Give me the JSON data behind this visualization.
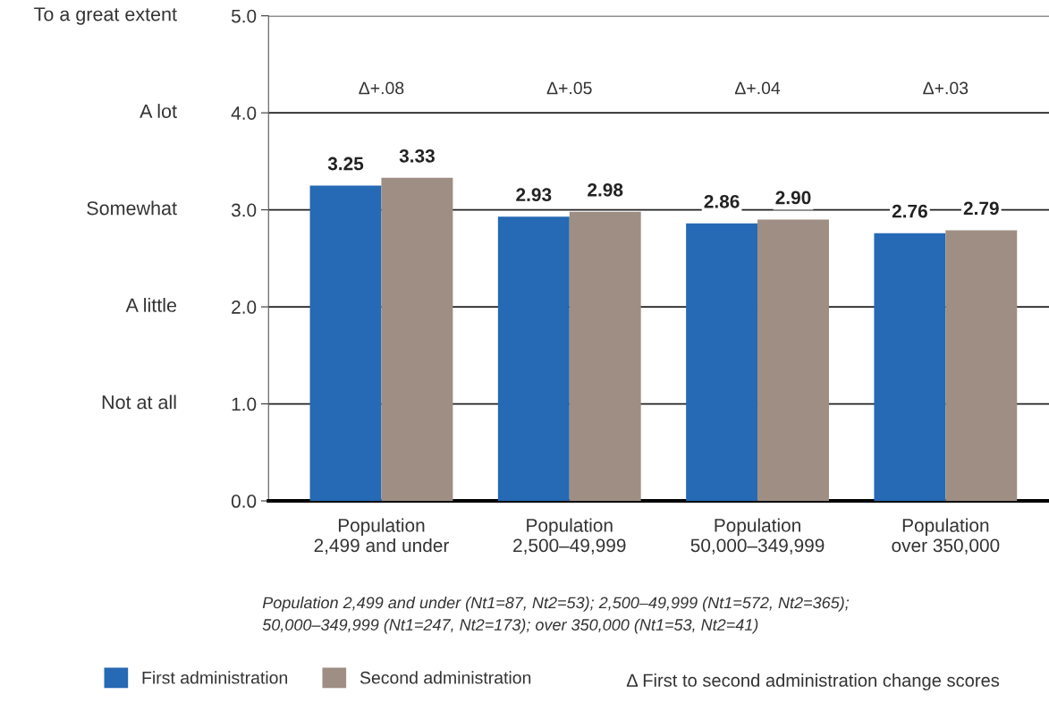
{
  "chart_data": {
    "type": "bar",
    "categories": [
      "Population\n2,499 and under",
      "Population\n2,500–49,999",
      "Population\n50,000–349,999",
      "Population\nover 350,000"
    ],
    "series": [
      {
        "name": "First administration",
        "color": "#2669b4",
        "values": [
          3.25,
          2.93,
          2.86,
          2.76
        ],
        "value_labels": [
          "3.25",
          "2.93",
          "2.86",
          "2.76"
        ]
      },
      {
        "name": "Second administration",
        "color": "#9e8e83",
        "values": [
          3.33,
          2.98,
          2.9,
          2.79
        ],
        "value_labels": [
          "3.33",
          "2.98",
          "2.90",
          "2.79"
        ]
      }
    ],
    "ylim": [
      0,
      5
    ],
    "yticks": [
      {
        "value": 0,
        "label": "0.0"
      },
      {
        "value": 1,
        "label": "1.0"
      },
      {
        "value": 2,
        "label": "2.0"
      },
      {
        "value": 3,
        "label": "3.0"
      },
      {
        "value": 4,
        "label": "4.0"
      },
      {
        "value": 5,
        "label": "5.0"
      }
    ],
    "grid": "y",
    "legend": "bottom",
    "annotations": [
      "Not at all",
      "A little",
      "Somewhat",
      "A lot",
      "To a great extent",
      "Δ+.08",
      "Δ+.05",
      "Δ+.04",
      "Δ+.03",
      "Population 2,499 and under (Nt1=87, Nt2=53); 2,500–49,999 (Nt1=572, Nt2=365);\n50,000–349,999 (Nt1=247, Nt2=173); over 350,000 (Nt1=53, Nt2=41)",
      "Δ First to second administration change scores"
    ]
  }
}
